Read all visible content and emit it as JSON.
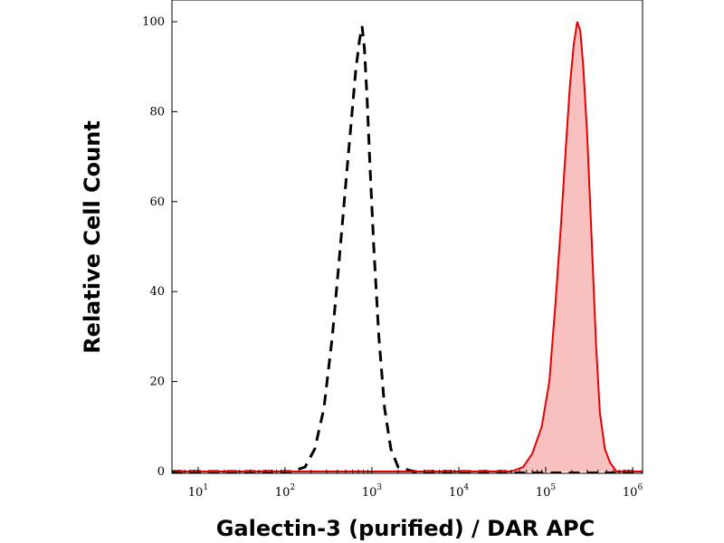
{
  "chart_data": {
    "type": "area",
    "title": "",
    "xlabel": "Galectin-3 (purified) / DAR APC",
    "ylabel": "Relative Cell Count",
    "x_scale": "log",
    "xlim": [
      5,
      1300000
    ],
    "ylim": [
      0,
      100
    ],
    "x_ticks": [
      {
        "value": 10,
        "base": "10",
        "exp": "1"
      },
      {
        "value": 100,
        "base": "10",
        "exp": "2"
      },
      {
        "value": 1000,
        "base": "10",
        "exp": "3"
      },
      {
        "value": 10000,
        "base": "10",
        "exp": "4"
      },
      {
        "value": 100000,
        "base": "10",
        "exp": "5"
      },
      {
        "value": 1000000,
        "base": "10",
        "exp": "6"
      }
    ],
    "y_ticks": [
      "0",
      "20",
      "40",
      "60",
      "80",
      "100"
    ],
    "grid": false,
    "legend": "none",
    "series": [
      {
        "style": "dashed-line",
        "color": "#000000",
        "points": [
          [
            5,
            0
          ],
          [
            120,
            0
          ],
          [
            170,
            1
          ],
          [
            220,
            5
          ],
          [
            280,
            14
          ],
          [
            350,
            30
          ],
          [
            420,
            47
          ],
          [
            500,
            64
          ],
          [
            580,
            78
          ],
          [
            650,
            89
          ],
          [
            720,
            96
          ],
          [
            770,
            99
          ],
          [
            820,
            94
          ],
          [
            880,
            83
          ],
          [
            950,
            68
          ],
          [
            1050,
            50
          ],
          [
            1200,
            30
          ],
          [
            1400,
            14
          ],
          [
            1650,
            5
          ],
          [
            2000,
            1
          ],
          [
            3000,
            0
          ],
          [
            1300000,
            0
          ]
        ]
      },
      {
        "style": "filled",
        "color": "#e60000",
        "fill": "#f9c0c0",
        "points": [
          [
            5,
            0
          ],
          [
            40000,
            0
          ],
          [
            55000,
            1
          ],
          [
            70000,
            4
          ],
          [
            90000,
            10
          ],
          [
            110000,
            20
          ],
          [
            130000,
            38
          ],
          [
            150000,
            55
          ],
          [
            170000,
            72
          ],
          [
            190000,
            86
          ],
          [
            210000,
            95
          ],
          [
            230000,
            100
          ],
          [
            250000,
            98
          ],
          [
            270000,
            90
          ],
          [
            300000,
            75
          ],
          [
            340000,
            50
          ],
          [
            380000,
            28
          ],
          [
            420000,
            13
          ],
          [
            480000,
            5
          ],
          [
            550000,
            2
          ],
          [
            650000,
            0
          ],
          [
            1300000,
            0
          ]
        ]
      }
    ]
  }
}
